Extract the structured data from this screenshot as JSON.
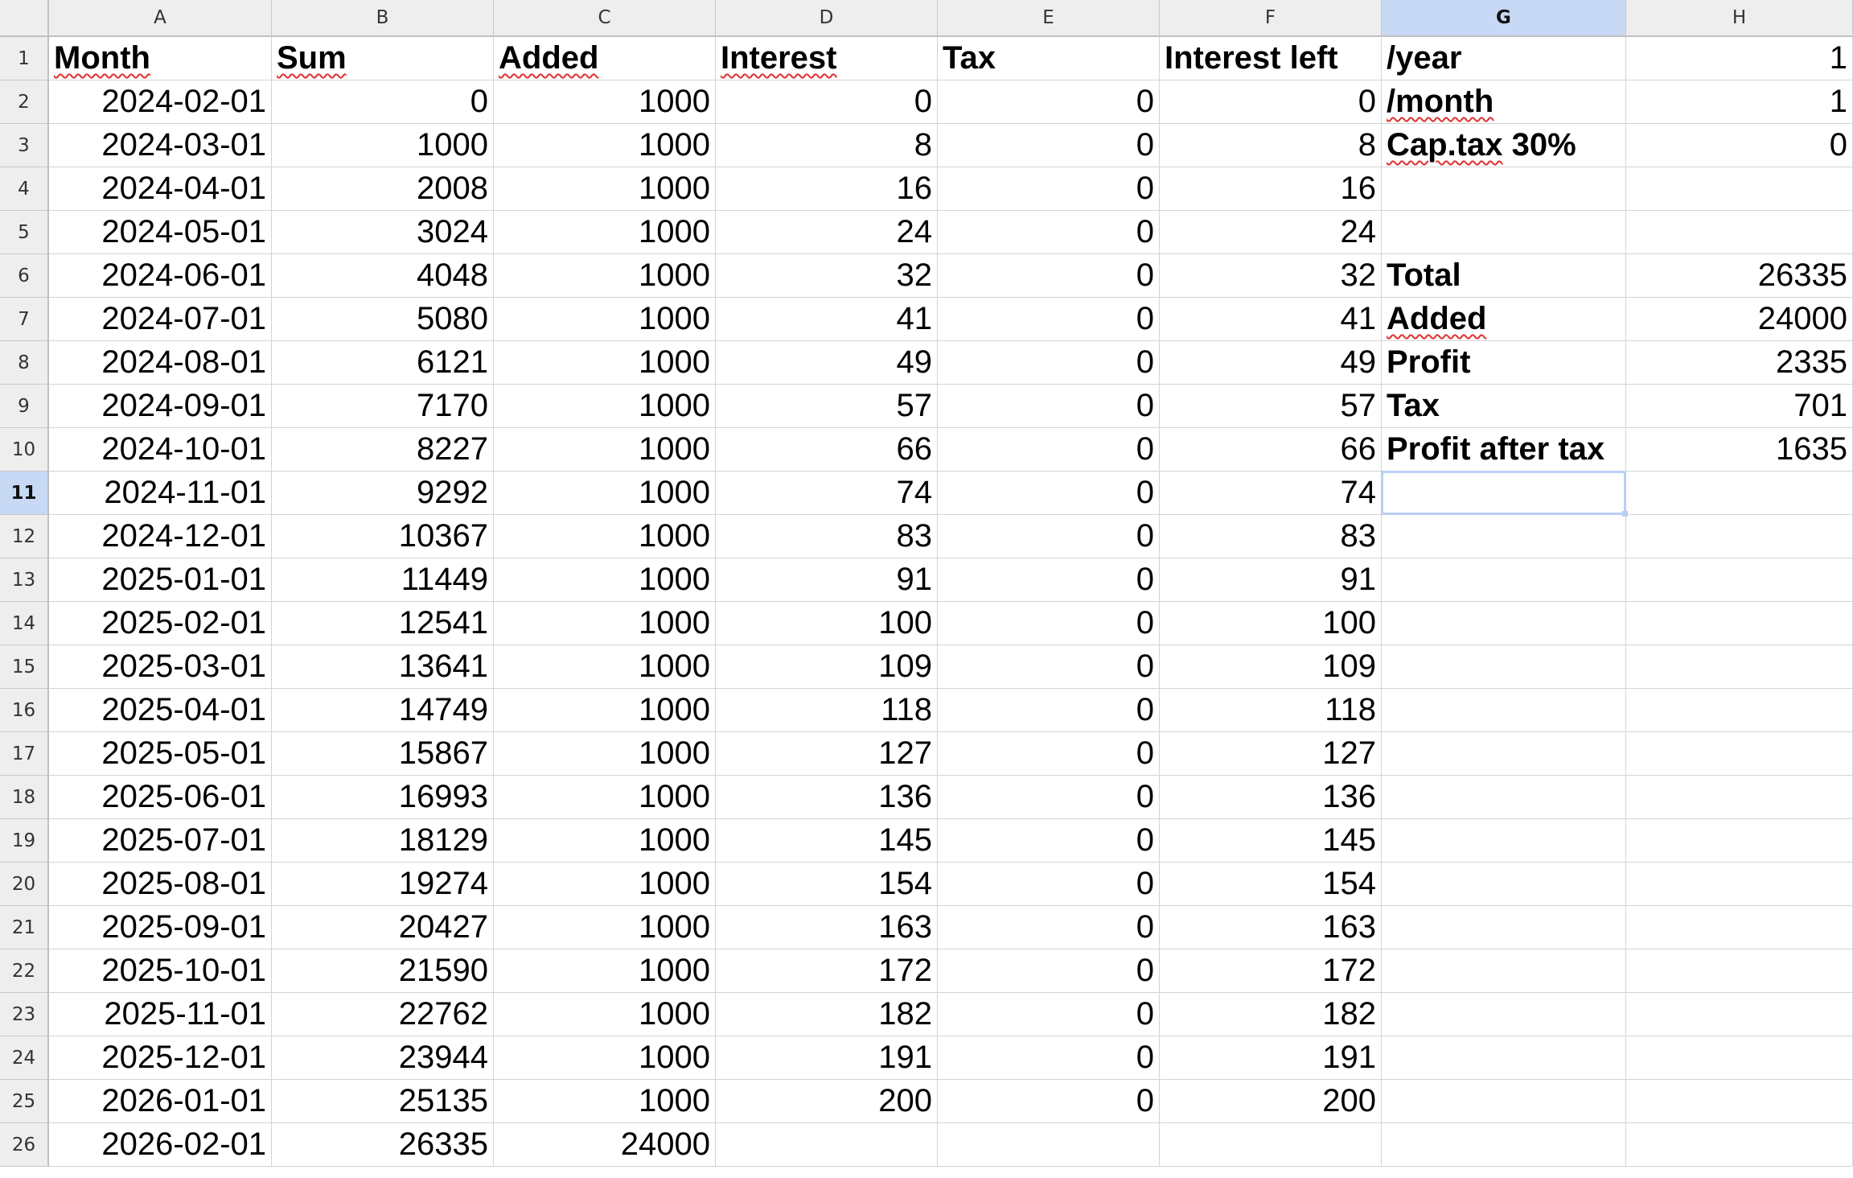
{
  "columns": [
    "A",
    "B",
    "C",
    "D",
    "E",
    "F",
    "G",
    "H"
  ],
  "selected_column": "G",
  "selected_row": 11,
  "rows": [
    [
      "Month",
      "Sum",
      "Added",
      "Interest",
      "Tax",
      "Interest left",
      "/year",
      "1"
    ],
    [
      "2024-02-01",
      "0",
      "1000",
      "0",
      "0",
      "0",
      "/month",
      "1"
    ],
    [
      "2024-03-01",
      "1000",
      "1000",
      "8",
      "0",
      "8",
      "Cap.tax 30%",
      "0"
    ],
    [
      "2024-04-01",
      "2008",
      "1000",
      "16",
      "0",
      "16",
      "",
      ""
    ],
    [
      "2024-05-01",
      "3024",
      "1000",
      "24",
      "0",
      "24",
      "",
      ""
    ],
    [
      "2024-06-01",
      "4048",
      "1000",
      "32",
      "0",
      "32",
      "Total",
      "26335"
    ],
    [
      "2024-07-01",
      "5080",
      "1000",
      "41",
      "0",
      "41",
      "Added",
      "24000"
    ],
    [
      "2024-08-01",
      "6121",
      "1000",
      "49",
      "0",
      "49",
      "Profit",
      "2335"
    ],
    [
      "2024-09-01",
      "7170",
      "1000",
      "57",
      "0",
      "57",
      "Tax",
      "701"
    ],
    [
      "2024-10-01",
      "8227",
      "1000",
      "66",
      "0",
      "66",
      "Profit after tax",
      "1635"
    ],
    [
      "2024-11-01",
      "9292",
      "1000",
      "74",
      "0",
      "74",
      "",
      ""
    ],
    [
      "2024-12-01",
      "10367",
      "1000",
      "83",
      "0",
      "83",
      "",
      ""
    ],
    [
      "2025-01-01",
      "11449",
      "1000",
      "91",
      "0",
      "91",
      "",
      ""
    ],
    [
      "2025-02-01",
      "12541",
      "1000",
      "100",
      "0",
      "100",
      "",
      ""
    ],
    [
      "2025-03-01",
      "13641",
      "1000",
      "109",
      "0",
      "109",
      "",
      ""
    ],
    [
      "2025-04-01",
      "14749",
      "1000",
      "118",
      "0",
      "118",
      "",
      ""
    ],
    [
      "2025-05-01",
      "15867",
      "1000",
      "127",
      "0",
      "127",
      "",
      ""
    ],
    [
      "2025-06-01",
      "16993",
      "1000",
      "136",
      "0",
      "136",
      "",
      ""
    ],
    [
      "2025-07-01",
      "18129",
      "1000",
      "145",
      "0",
      "145",
      "",
      ""
    ],
    [
      "2025-08-01",
      "19274",
      "1000",
      "154",
      "0",
      "154",
      "",
      ""
    ],
    [
      "2025-09-01",
      "20427",
      "1000",
      "163",
      "0",
      "163",
      "",
      ""
    ],
    [
      "2025-10-01",
      "21590",
      "1000",
      "172",
      "0",
      "172",
      "",
      ""
    ],
    [
      "2025-11-01",
      "22762",
      "1000",
      "182",
      "0",
      "182",
      "",
      ""
    ],
    [
      "2025-12-01",
      "23944",
      "1000",
      "191",
      "0",
      "191",
      "",
      ""
    ],
    [
      "2026-01-01",
      "25135",
      "1000",
      "200",
      "0",
      "200",
      "",
      ""
    ],
    [
      "2026-02-01",
      "26335",
      "24000",
      "",
      "",
      "",
      "",
      ""
    ]
  ],
  "colors": {
    "selection_header": "#c7d9f5",
    "cell_cursor": "#b9cff5",
    "spellcheck": "#e03030"
  }
}
